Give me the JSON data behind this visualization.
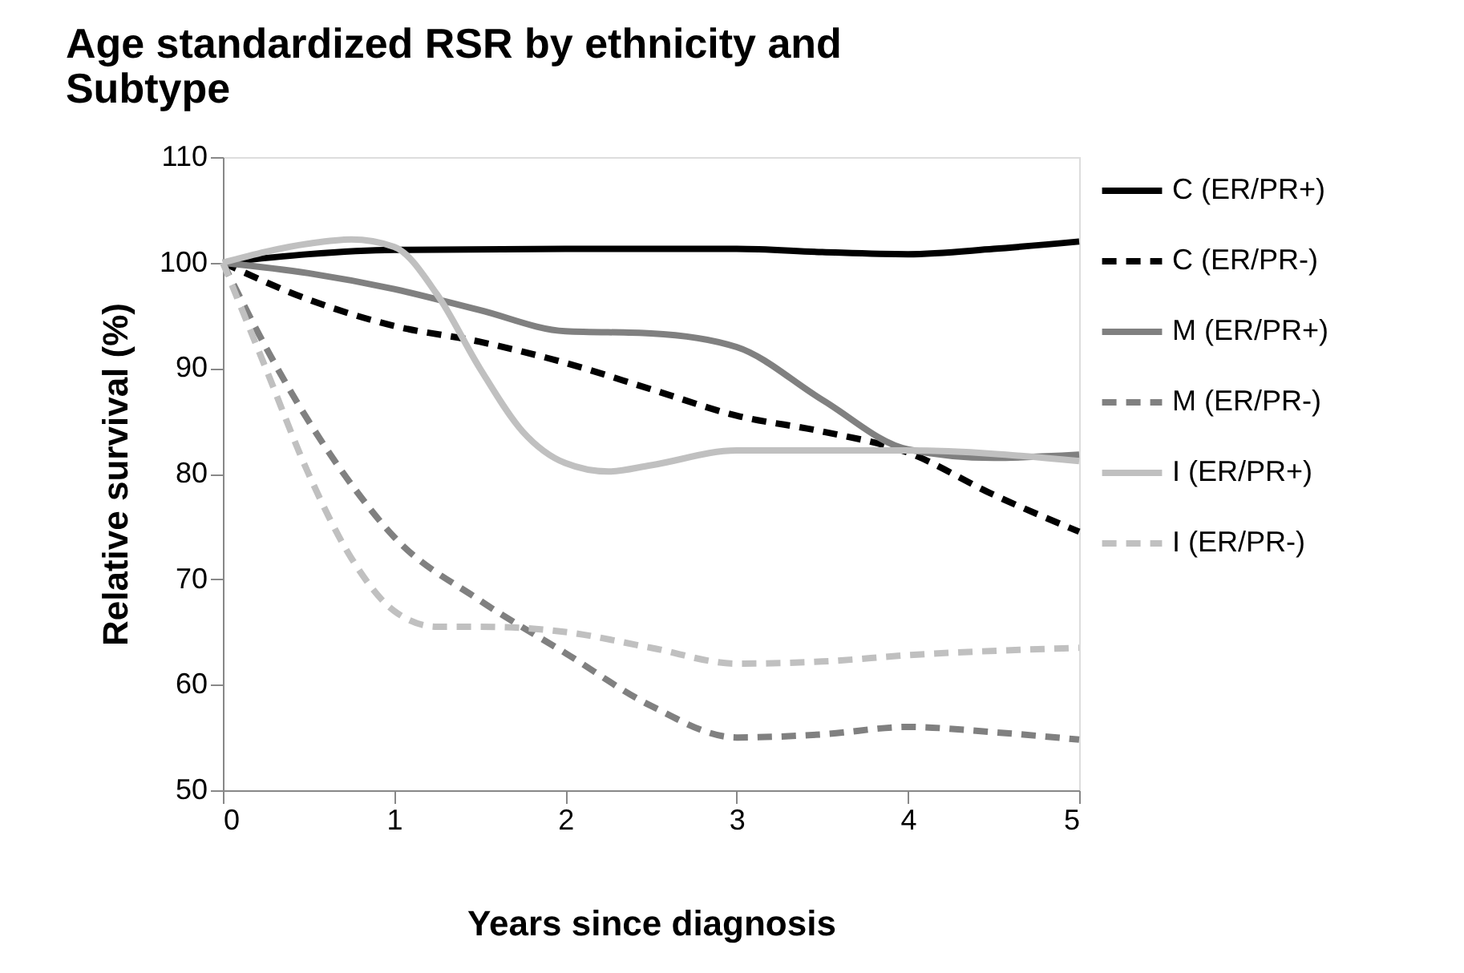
{
  "chart_data": {
    "type": "line",
    "title": "Age standardized RSR by ethnicity and Subtype",
    "xlabel": "Years since diagnosis",
    "ylabel": "Relative survival (%)",
    "xlim": [
      0,
      5
    ],
    "xticks": [
      0,
      1,
      2,
      3,
      4,
      5
    ],
    "ylim": [
      50,
      110
    ],
    "yticks": [
      50,
      60,
      70,
      80,
      90,
      100,
      110
    ],
    "grid": false,
    "legend": "right",
    "marker": "none",
    "series": [
      {
        "name": "C (ER/PR+)",
        "color": "#000000",
        "line_style": "solid",
        "x": [
          0,
          0.5,
          1,
          2,
          3,
          3.5,
          4,
          4.5,
          5
        ],
        "values": [
          100,
          100.8,
          101.2,
          101.3,
          101.3,
          101,
          100.8,
          101.3,
          102
        ]
      },
      {
        "name": "C (ER/PR-)",
        "color": "#000000",
        "line_style": "dashed",
        "x": [
          0,
          0.5,
          1,
          1.5,
          2,
          2.5,
          3,
          3.5,
          4,
          4.5,
          5
        ],
        "values": [
          100,
          96.5,
          94,
          92.5,
          90.5,
          88,
          85.5,
          84,
          82,
          78,
          74.5
        ]
      },
      {
        "name": "M (ER/PR+)",
        "color": "#808080",
        "line_style": "solid",
        "x": [
          0,
          0.5,
          1,
          1.5,
          2,
          2.5,
          3,
          3.5,
          4,
          4.5,
          5
        ],
        "values": [
          100,
          99,
          97.5,
          95.5,
          93.5,
          93.3,
          92,
          87,
          82.3,
          81.5,
          81.8
        ]
      },
      {
        "name": "M (ER/PR-)",
        "color": "#808080",
        "line_style": "dashed",
        "x": [
          0,
          0.25,
          0.5,
          0.75,
          1,
          1.5,
          2,
          2.5,
          3,
          3.5,
          4,
          4.5,
          5
        ],
        "values": [
          100,
          92,
          85,
          79,
          74,
          68,
          63,
          58,
          55,
          55.3,
          56,
          55.5,
          54.8
        ]
      },
      {
        "name": "I (ER/PR+)",
        "color": "#c0c0c0",
        "line_style": "solid",
        "x": [
          0,
          0.5,
          0.75,
          1,
          1.25,
          1.5,
          1.75,
          2,
          2.25,
          2.5,
          3,
          4,
          5
        ],
        "values": [
          100,
          101.8,
          102.2,
          101.5,
          97,
          90,
          84,
          81,
          80.2,
          80.8,
          82.2,
          82.2,
          81.2
        ]
      },
      {
        "name": "I (ER/PR-)",
        "color": "#c0c0c0",
        "line_style": "dashed",
        "x": [
          0,
          0.25,
          0.5,
          0.75,
          1,
          1.25,
          1.5,
          2,
          2.5,
          3,
          3.5,
          4,
          5
        ],
        "values": [
          100,
          90,
          80,
          72,
          67,
          65.5,
          65.5,
          65,
          63.5,
          62,
          62.2,
          62.8,
          63.5
        ]
      }
    ]
  }
}
